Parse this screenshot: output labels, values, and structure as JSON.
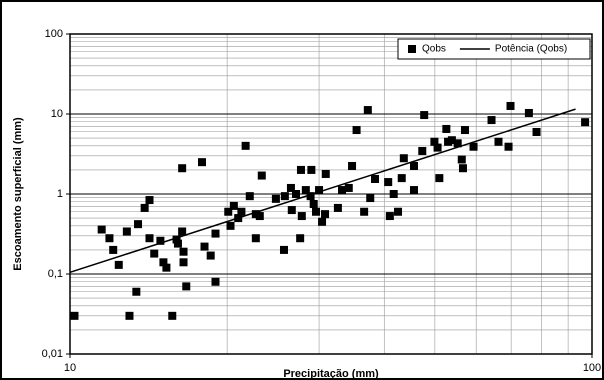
{
  "chart_data": {
    "type": "scatter",
    "xlabel": "Precipitação (mm)",
    "ylabel": "Escoamento superficial (mm)",
    "log_x": true,
    "log_y": true,
    "grid": true,
    "legend": "top-right",
    "xlim": [
      10,
      100
    ],
    "ylim": [
      0.01,
      100
    ],
    "xticks": [
      10,
      100
    ],
    "yticks": [
      {
        "value": 0.01,
        "label": "0,01"
      },
      {
        "value": 0.1,
        "label": "0,1"
      },
      1,
      10,
      100
    ],
    "series": [
      {
        "name": "Qobs",
        "color": "#000000",
        "marker": "square",
        "x": [
          10.2,
          11.5,
          11.9,
          12.1,
          12.4,
          12.85,
          13.0,
          13.4,
          13.5,
          13.9,
          14.2,
          14.2,
          14.5,
          14.9,
          15.1,
          15.3,
          15.7,
          16.0,
          16.1,
          16.4,
          16.5,
          16.5,
          16.4,
          16.7,
          17.9,
          18.1,
          18.6,
          19.0,
          19.0,
          20.1,
          20.3,
          20.6,
          21.0,
          21.3,
          21.7,
          22.1,
          22.7,
          22.7,
          23.1,
          23.3,
          24.8,
          25.7,
          25.8,
          26.5,
          26.6,
          27.1,
          27.6,
          27.7,
          27.8,
          28.3,
          28.9,
          29.0,
          29.3,
          29.6,
          30.0,
          30.4,
          30.8,
          30.9,
          32.6,
          33.2,
          34.2,
          34.7,
          35.4,
          36.6,
          37.2,
          37.6,
          38.4,
          41.0,
          41.7,
          43.2,
          40.7,
          42.5,
          43.6,
          45.6,
          45.6,
          47.3,
          47.7,
          49.9,
          50.6,
          51.0,
          52.6,
          53.0,
          53.9,
          55.3,
          56.3,
          56.6,
          57.1,
          59.3,
          64.2,
          66.2,
          69.2,
          69.8,
          75.7,
          78.3,
          97.0
        ],
        "values": [
          0.03,
          0.36,
          0.28,
          0.2,
          0.13,
          0.34,
          0.03,
          0.06,
          0.42,
          0.67,
          0.84,
          0.28,
          0.18,
          0.26,
          0.14,
          0.12,
          0.03,
          0.27,
          0.24,
          0.34,
          0.14,
          0.19,
          2.1,
          0.07,
          2.5,
          0.22,
          0.17,
          0.08,
          0.32,
          0.6,
          0.4,
          0.71,
          0.5,
          0.6,
          4.0,
          0.94,
          0.28,
          0.56,
          0.53,
          1.7,
          0.87,
          0.2,
          0.94,
          1.19,
          0.63,
          1.0,
          0.28,
          2.0,
          0.53,
          1.12,
          0.94,
          2.0,
          0.75,
          0.6,
          1.12,
          0.45,
          0.56,
          1.78,
          0.67,
          1.12,
          1.19,
          2.24,
          6.3,
          0.6,
          11.2,
          0.89,
          1.54,
          0.53,
          1.0,
          1.58,
          1.41,
          0.6,
          2.8,
          1.12,
          2.24,
          3.45,
          9.7,
          4.5,
          3.8,
          1.58,
          6.5,
          4.5,
          4.7,
          4.3,
          2.7,
          2.1,
          6.3,
          3.9,
          8.4,
          4.5,
          3.9,
          12.6,
          10.3,
          5.96,
          7.9
        ]
      },
      {
        "name": "Potência (Qobs)",
        "color": "#000000",
        "marker": "line",
        "x": [
          10,
          93
        ],
        "values": [
          0.105,
          11.5
        ]
      }
    ]
  }
}
